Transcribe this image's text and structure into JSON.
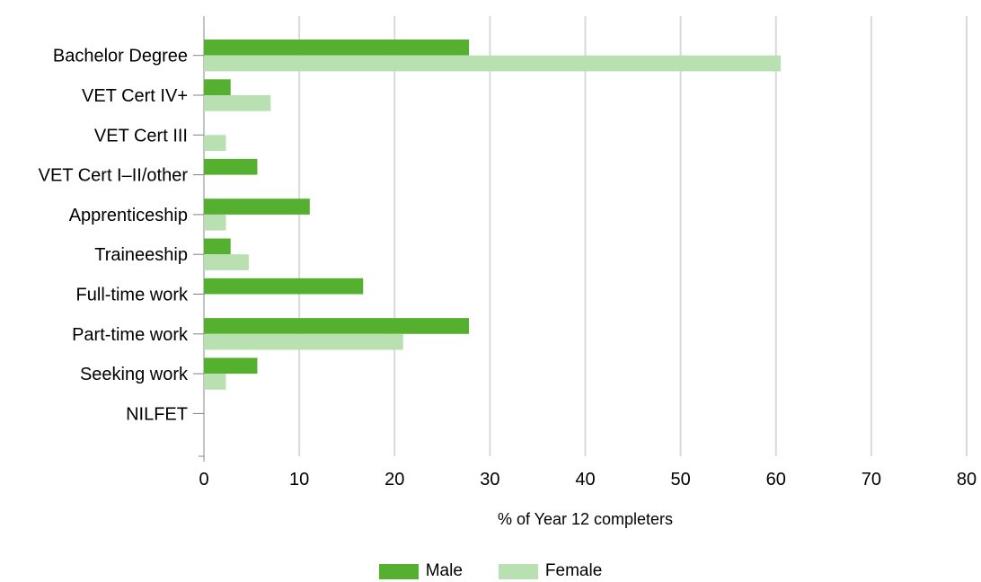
{
  "chart_data": {
    "type": "bar",
    "orientation": "horizontal",
    "categories": [
      "Bachelor Degree",
      "VET Cert IV+",
      "VET Cert III",
      "VET Cert I–II/other",
      "Apprenticeship",
      "Traineeship",
      "Full-time work",
      "Part-time work",
      "Seeking work",
      "NILFET"
    ],
    "series": [
      {
        "name": "Male",
        "color": "#56b030",
        "values": [
          27.8,
          2.8,
          0,
          5.6,
          11.1,
          2.8,
          16.7,
          27.8,
          5.6,
          0
        ]
      },
      {
        "name": "Female",
        "color": "#b8e0b0",
        "values": [
          60.5,
          7.0,
          2.3,
          0,
          2.3,
          4.7,
          0,
          20.9,
          2.3,
          0
        ]
      }
    ],
    "xlabel": "% of Year 12 completers",
    "xlim": [
      0,
      80
    ],
    "xticks": [
      0,
      10,
      20,
      30,
      40,
      50,
      60,
      70,
      80
    ],
    "grid": true,
    "legend_position": "bottom"
  }
}
